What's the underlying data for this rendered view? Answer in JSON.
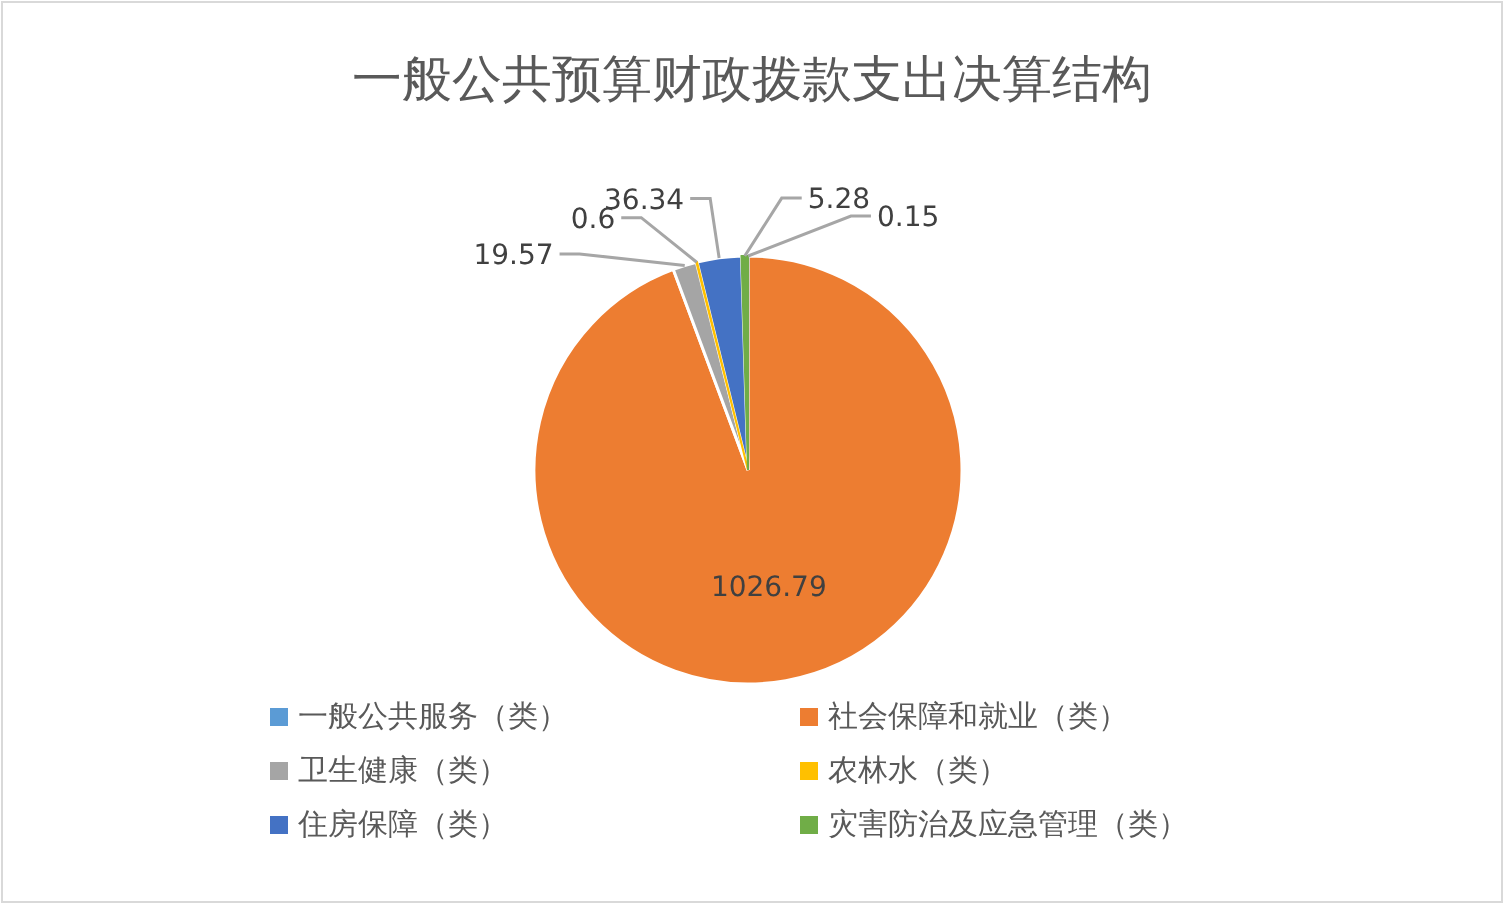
{
  "chart_data": {
    "type": "pie",
    "title": "一般公共预算财政拨款支出决算结构",
    "categories": [
      "一般公共服务（类）",
      "社会保障和就业（类）",
      "卫生健康（类）",
      "农林水（类）",
      "住房保障（类）",
      "灾害防治及应急管理（类）"
    ],
    "values": [
      0.15,
      1026.79,
      19.57,
      0.6,
      36.34,
      5.28
    ],
    "colors": [
      "#5b9bd5",
      "#ed7d31",
      "#a5a5a5",
      "#ffc000",
      "#4472c4",
      "#70ad47"
    ],
    "data_labels": true,
    "legend": "bottom"
  }
}
